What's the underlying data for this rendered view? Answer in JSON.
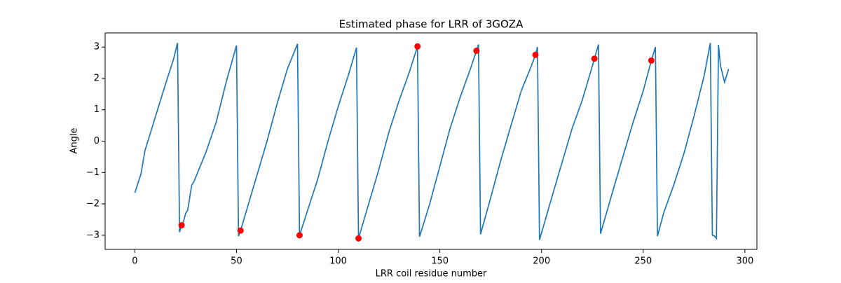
{
  "chart_data": {
    "type": "line",
    "title": "Estimated phase for LRR of 3GOZA",
    "xlabel": "LRR coil residue number",
    "ylabel": "Angle",
    "xlim": [
      -14.6,
      305.9
    ],
    "ylim": [
      -3.45,
      3.45
    ],
    "xticks": [
      0,
      50,
      100,
      150,
      200,
      250,
      300
    ],
    "yticks": [
      {
        "value": -3,
        "label": "−3"
      },
      {
        "value": -2,
        "label": "−2"
      },
      {
        "value": -1,
        "label": "−1"
      },
      0,
      1,
      2,
      3
    ],
    "series": [
      {
        "style": "line",
        "color": "#1f77b4",
        "x": [
          0,
          3,
          5,
          10,
          15,
          19,
          21,
          22,
          23,
          24,
          25,
          26,
          28,
          29,
          35,
          40,
          45,
          50,
          51,
          52,
          60,
          65,
          70,
          75,
          80,
          81,
          85,
          90,
          95,
          100,
          105,
          109,
          110,
          115,
          120,
          125,
          130,
          135,
          139,
          140,
          145,
          150,
          155,
          160,
          165,
          168,
          169,
          170,
          175,
          180,
          185,
          190,
          195,
          197,
          198,
          199,
          205,
          210,
          215,
          220,
          225,
          226,
          228,
          229,
          235,
          240,
          245,
          250,
          254,
          256,
          257,
          260,
          265,
          270,
          275,
          280,
          283,
          284,
          285,
          286,
          287,
          288,
          290,
          292
        ],
        "values": [
          -1.65,
          -1.05,
          -0.3,
          0.75,
          1.8,
          2.6,
          3.13,
          -2.9,
          -2.68,
          -2.55,
          -2.3,
          -2.2,
          -1.4,
          -1.3,
          -0.35,
          0.6,
          1.9,
          3.05,
          -3.03,
          -2.85,
          -1.1,
          0.0,
          1.2,
          2.3,
          3.1,
          -3.0,
          -2.2,
          -1.2,
          0.0,
          1.1,
          2.1,
          2.98,
          -3.1,
          -2.0,
          -0.9,
          0.3,
          1.3,
          2.2,
          3.02,
          -3.05,
          -2.0,
          -0.8,
          0.4,
          1.4,
          2.3,
          2.88,
          3.08,
          -2.97,
          -1.8,
          -0.6,
          0.5,
          1.6,
          2.4,
          2.75,
          3.0,
          -3.15,
          -1.8,
          -0.7,
          0.4,
          1.3,
          2.4,
          2.63,
          3.08,
          -2.95,
          -1.6,
          -0.5,
          0.6,
          1.6,
          2.57,
          3.0,
          -3.03,
          -2.3,
          -1.4,
          -0.4,
          0.8,
          2.1,
          3.13,
          -3.0,
          -3.02,
          -3.1,
          3.07,
          2.4,
          1.88,
          2.3
        ]
      },
      {
        "style": "markers",
        "color": "#ff0000",
        "x": [
          23,
          52,
          81,
          110,
          139,
          168,
          197,
          226,
          254
        ],
        "values": [
          -2.68,
          -2.85,
          -3.0,
          -3.1,
          3.02,
          2.88,
          2.75,
          2.63,
          2.57
        ]
      }
    ]
  }
}
